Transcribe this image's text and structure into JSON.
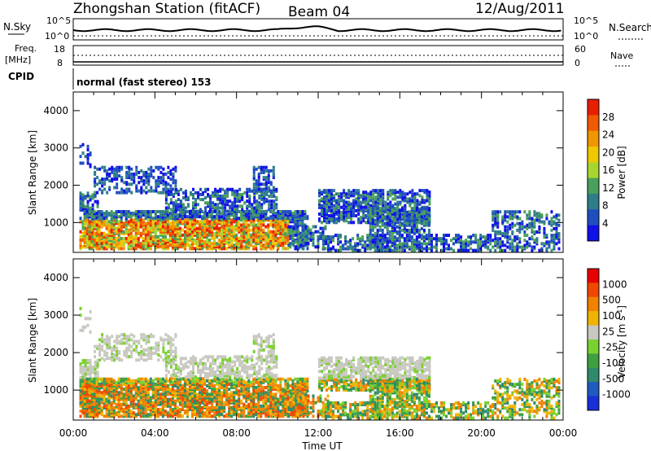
{
  "header": {
    "station": "Zhongshan Station (fitACF)",
    "beam": "Beam 04",
    "date": "12/Aug/2011"
  },
  "panel_labels": {
    "nsky": "N.Sky",
    "nsearch": "N.Search",
    "freq_top": "Freq.",
    "freq_unit": "[MHz]",
    "nave": "Nave",
    "cpid": "CPID",
    "cpid_text": "normal (fast stereo) 153",
    "nsky_ticks": [
      "10^5",
      "10^0"
    ],
    "nsearch_ticks": [
      "10^5",
      "10^0"
    ],
    "freq_ticks": [
      "18",
      "8"
    ],
    "nave_ticks": [
      "60",
      "0"
    ]
  },
  "colors": {
    "power_scale": [
      "#1010e8",
      "#1f4fbf",
      "#2f7d8a",
      "#4aa05a",
      "#a8d630",
      "#f0c800",
      "#f09600",
      "#f05a00",
      "#e81e00"
    ],
    "velocity_scale": [
      "#1830d8",
      "#1f5ac0",
      "#2e8a6a",
      "#3ea040",
      "#7ad030",
      "#c8c8c0",
      "#f0b400",
      "#f08200",
      "#f04800",
      "#e80000"
    ]
  },
  "chart_data": [
    {
      "type": "heatmap",
      "name": "power",
      "ylabel": "Slant Range [km]",
      "xlabel": "Time UT",
      "ylim": [
        200,
        4500
      ],
      "yticks": [
        "1000",
        "2000",
        "3000",
        "4000"
      ],
      "colorbar_label": "Power [dB]",
      "colorbar_ticks": [
        "4",
        "8",
        "12",
        "16",
        "20",
        "24",
        "28"
      ]
    },
    {
      "type": "heatmap",
      "name": "velocity",
      "ylabel": "Slant Range [km]",
      "xlabel": "Time UT",
      "ylim": [
        200,
        4500
      ],
      "yticks": [
        "1000",
        "2000",
        "3000",
        "4000"
      ],
      "colorbar_label": "Velocity  [m s",
      "colorbar_label_sup": "-1",
      "colorbar_label_end": "]",
      "colorbar_ticks": [
        "1000",
        "500",
        "100",
        "25",
        "-25",
        "-100",
        "-500",
        "-1000"
      ]
    }
  ],
  "time_axis": {
    "label": "Time UT",
    "ticks": [
      "00:00",
      "04:00",
      "08:00",
      "12:00",
      "16:00",
      "20:00",
      "00:00"
    ],
    "range_hours": [
      0,
      24
    ]
  }
}
